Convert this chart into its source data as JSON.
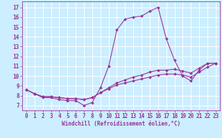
{
  "xlabel": "Windchill (Refroidissement éolien,°C)",
  "bg_color": "#cceeff",
  "line_color": "#993399",
  "grid_color": "#ffffff",
  "x_ticks": [
    0,
    1,
    2,
    3,
    4,
    5,
    6,
    7,
    8,
    9,
    10,
    11,
    12,
    13,
    14,
    15,
    16,
    17,
    18,
    19,
    20,
    21,
    22,
    23
  ],
  "y_ticks": [
    7,
    8,
    9,
    10,
    11,
    12,
    13,
    14,
    15,
    16,
    17
  ],
  "xlim": [
    -0.5,
    23.5
  ],
  "ylim": [
    6.5,
    17.6
  ],
  "line1_x": [
    0,
    1,
    2,
    3,
    4,
    5,
    6,
    7,
    8,
    9,
    10,
    11,
    12,
    13,
    14,
    15,
    16,
    17,
    18,
    19,
    20,
    21,
    22,
    23
  ],
  "line1_y": [
    8.6,
    8.2,
    7.8,
    7.8,
    7.6,
    7.5,
    7.5,
    7.0,
    7.3,
    8.8,
    11.0,
    14.7,
    15.8,
    16.0,
    16.1,
    16.6,
    17.0,
    13.8,
    11.6,
    10.0,
    9.5,
    10.6,
    11.3,
    11.3
  ],
  "line2_x": [
    0,
    1,
    2,
    3,
    4,
    5,
    6,
    7,
    8,
    9,
    10,
    11,
    12,
    13,
    14,
    15,
    16,
    17,
    18,
    19,
    20,
    21,
    22,
    23
  ],
  "line2_y": [
    8.6,
    8.2,
    7.9,
    7.9,
    7.8,
    7.7,
    7.7,
    7.6,
    7.8,
    8.3,
    8.8,
    9.3,
    9.6,
    9.9,
    10.1,
    10.4,
    10.6,
    10.6,
    10.7,
    10.5,
    10.3,
    10.8,
    11.3,
    11.3
  ],
  "line3_x": [
    0,
    1,
    2,
    3,
    4,
    5,
    6,
    7,
    8,
    9,
    10,
    11,
    12,
    13,
    14,
    15,
    16,
    17,
    18,
    19,
    20,
    21,
    22,
    23
  ],
  "line3_y": [
    8.6,
    8.2,
    7.9,
    7.9,
    7.8,
    7.7,
    7.7,
    7.6,
    7.8,
    8.3,
    8.7,
    9.1,
    9.3,
    9.5,
    9.7,
    9.9,
    10.1,
    10.2,
    10.2,
    10.1,
    9.9,
    10.4,
    10.9,
    11.3
  ],
  "tick_fontsize": 5.5,
  "xlabel_fontsize": 5.5,
  "marker_size": 2.0,
  "line_width": 0.8
}
